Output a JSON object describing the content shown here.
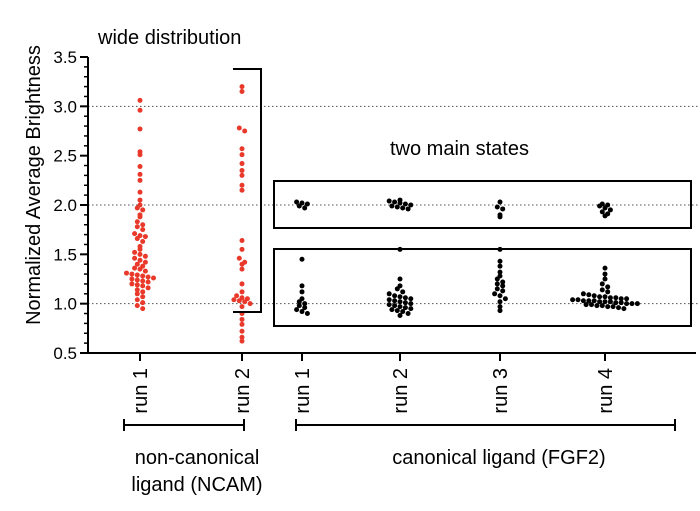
{
  "chart_data": {
    "type": "scatter",
    "ylabel": "Normalized Average Brightness",
    "ylim": [
      0.5,
      3.5
    ],
    "yticks": [
      "0.5",
      "1.0",
      "1.5",
      "2.0",
      "2.5",
      "3.0",
      "3.5"
    ],
    "grid_lines_y": [
      1.0,
      2.0,
      3.0
    ],
    "categories": [
      "run 1",
      "run 2",
      "run 1",
      "run 2",
      "run 3",
      "run 4"
    ],
    "groups": [
      {
        "label": "non-canonical\nligand (NCAM)",
        "label_line1": "non-canonical",
        "label_line2": "ligand (NCAM)",
        "categories": [
          0,
          1
        ],
        "color": "#e8392b"
      },
      {
        "label": "canonical ligand (FGF2)",
        "categories": [
          2,
          3,
          4,
          5
        ],
        "color": "#000000"
      }
    ],
    "annotations": {
      "wide": "wide distribution",
      "two_states": "two main states"
    },
    "series": [
      {
        "name": "NCAM run 1",
        "color": "#e8392b",
        "values": [
          3.06,
          2.96,
          2.77,
          2.54,
          2.51,
          2.39,
          2.31,
          2.25,
          2.13,
          2.05,
          2.0,
          1.97,
          1.95,
          1.9,
          1.88,
          1.83,
          1.8,
          1.78,
          1.75,
          1.71,
          1.69,
          1.68,
          1.66,
          1.63,
          1.58,
          1.55,
          1.52,
          1.5,
          1.48,
          1.46,
          1.44,
          1.42,
          1.4,
          1.38,
          1.36,
          1.35,
          1.33,
          1.31,
          1.3,
          1.29,
          1.28,
          1.27,
          1.26,
          1.25,
          1.24,
          1.23,
          1.22,
          1.2,
          1.19,
          1.18,
          1.16,
          1.14,
          1.12,
          1.1,
          1.07,
          1.04,
          1.01,
          0.98,
          0.95
        ]
      },
      {
        "name": "NCAM run 2",
        "color": "#e8392b",
        "values": [
          3.2,
          3.15,
          2.78,
          2.75,
          2.57,
          2.51,
          2.42,
          2.35,
          2.3,
          2.2,
          2.15,
          1.64,
          1.55,
          1.46,
          1.42,
          1.4,
          1.35,
          1.2,
          1.12,
          1.08,
          1.06,
          1.05,
          1.04,
          1.03,
          1.02,
          1.0,
          0.97,
          0.9,
          0.84,
          0.79,
          0.72,
          0.66,
          0.62
        ]
      },
      {
        "name": "FGF2 run 1",
        "color": "#000000",
        "values": [
          2.03,
          2.02,
          2.01,
          1.99,
          1.97,
          1.45,
          1.18,
          1.12,
          1.05,
          1.02,
          1.0,
          0.98,
          0.96,
          0.94,
          0.92,
          0.9
        ]
      },
      {
        "name": "FGF2 run 2",
        "color": "#000000",
        "values": [
          2.05,
          2.04,
          2.03,
          2.02,
          2.01,
          2.0,
          1.99,
          1.98,
          1.97,
          1.96,
          1.55,
          1.25,
          1.18,
          1.15,
          1.12,
          1.1,
          1.08,
          1.07,
          1.06,
          1.05,
          1.04,
          1.03,
          1.02,
          1.01,
          1.0,
          0.99,
          0.98,
          0.97,
          0.96,
          0.95,
          0.94,
          0.93,
          0.92,
          0.9,
          0.88
        ]
      },
      {
        "name": "FGF2 run 3",
        "color": "#000000",
        "values": [
          2.03,
          1.98,
          1.96,
          1.9,
          1.88,
          1.55,
          1.43,
          1.38,
          1.32,
          1.28,
          1.25,
          1.22,
          1.2,
          1.18,
          1.15,
          1.13,
          1.1,
          1.08,
          1.05,
          1.02,
          0.97,
          0.93
        ]
      },
      {
        "name": "FGF2 run 4",
        "color": "#000000",
        "values": [
          2.01,
          2.0,
          1.99,
          1.97,
          1.95,
          1.93,
          1.91,
          1.89,
          1.36,
          1.3,
          1.25,
          1.2,
          1.17,
          1.14,
          1.12,
          1.1,
          1.09,
          1.08,
          1.07,
          1.07,
          1.06,
          1.06,
          1.05,
          1.05,
          1.04,
          1.04,
          1.03,
          1.03,
          1.03,
          1.02,
          1.02,
          1.02,
          1.01,
          1.01,
          1.0,
          1.0,
          1.0,
          0.99,
          0.99,
          0.98,
          0.98,
          0.97,
          0.97,
          0.96,
          0.95
        ]
      }
    ]
  }
}
